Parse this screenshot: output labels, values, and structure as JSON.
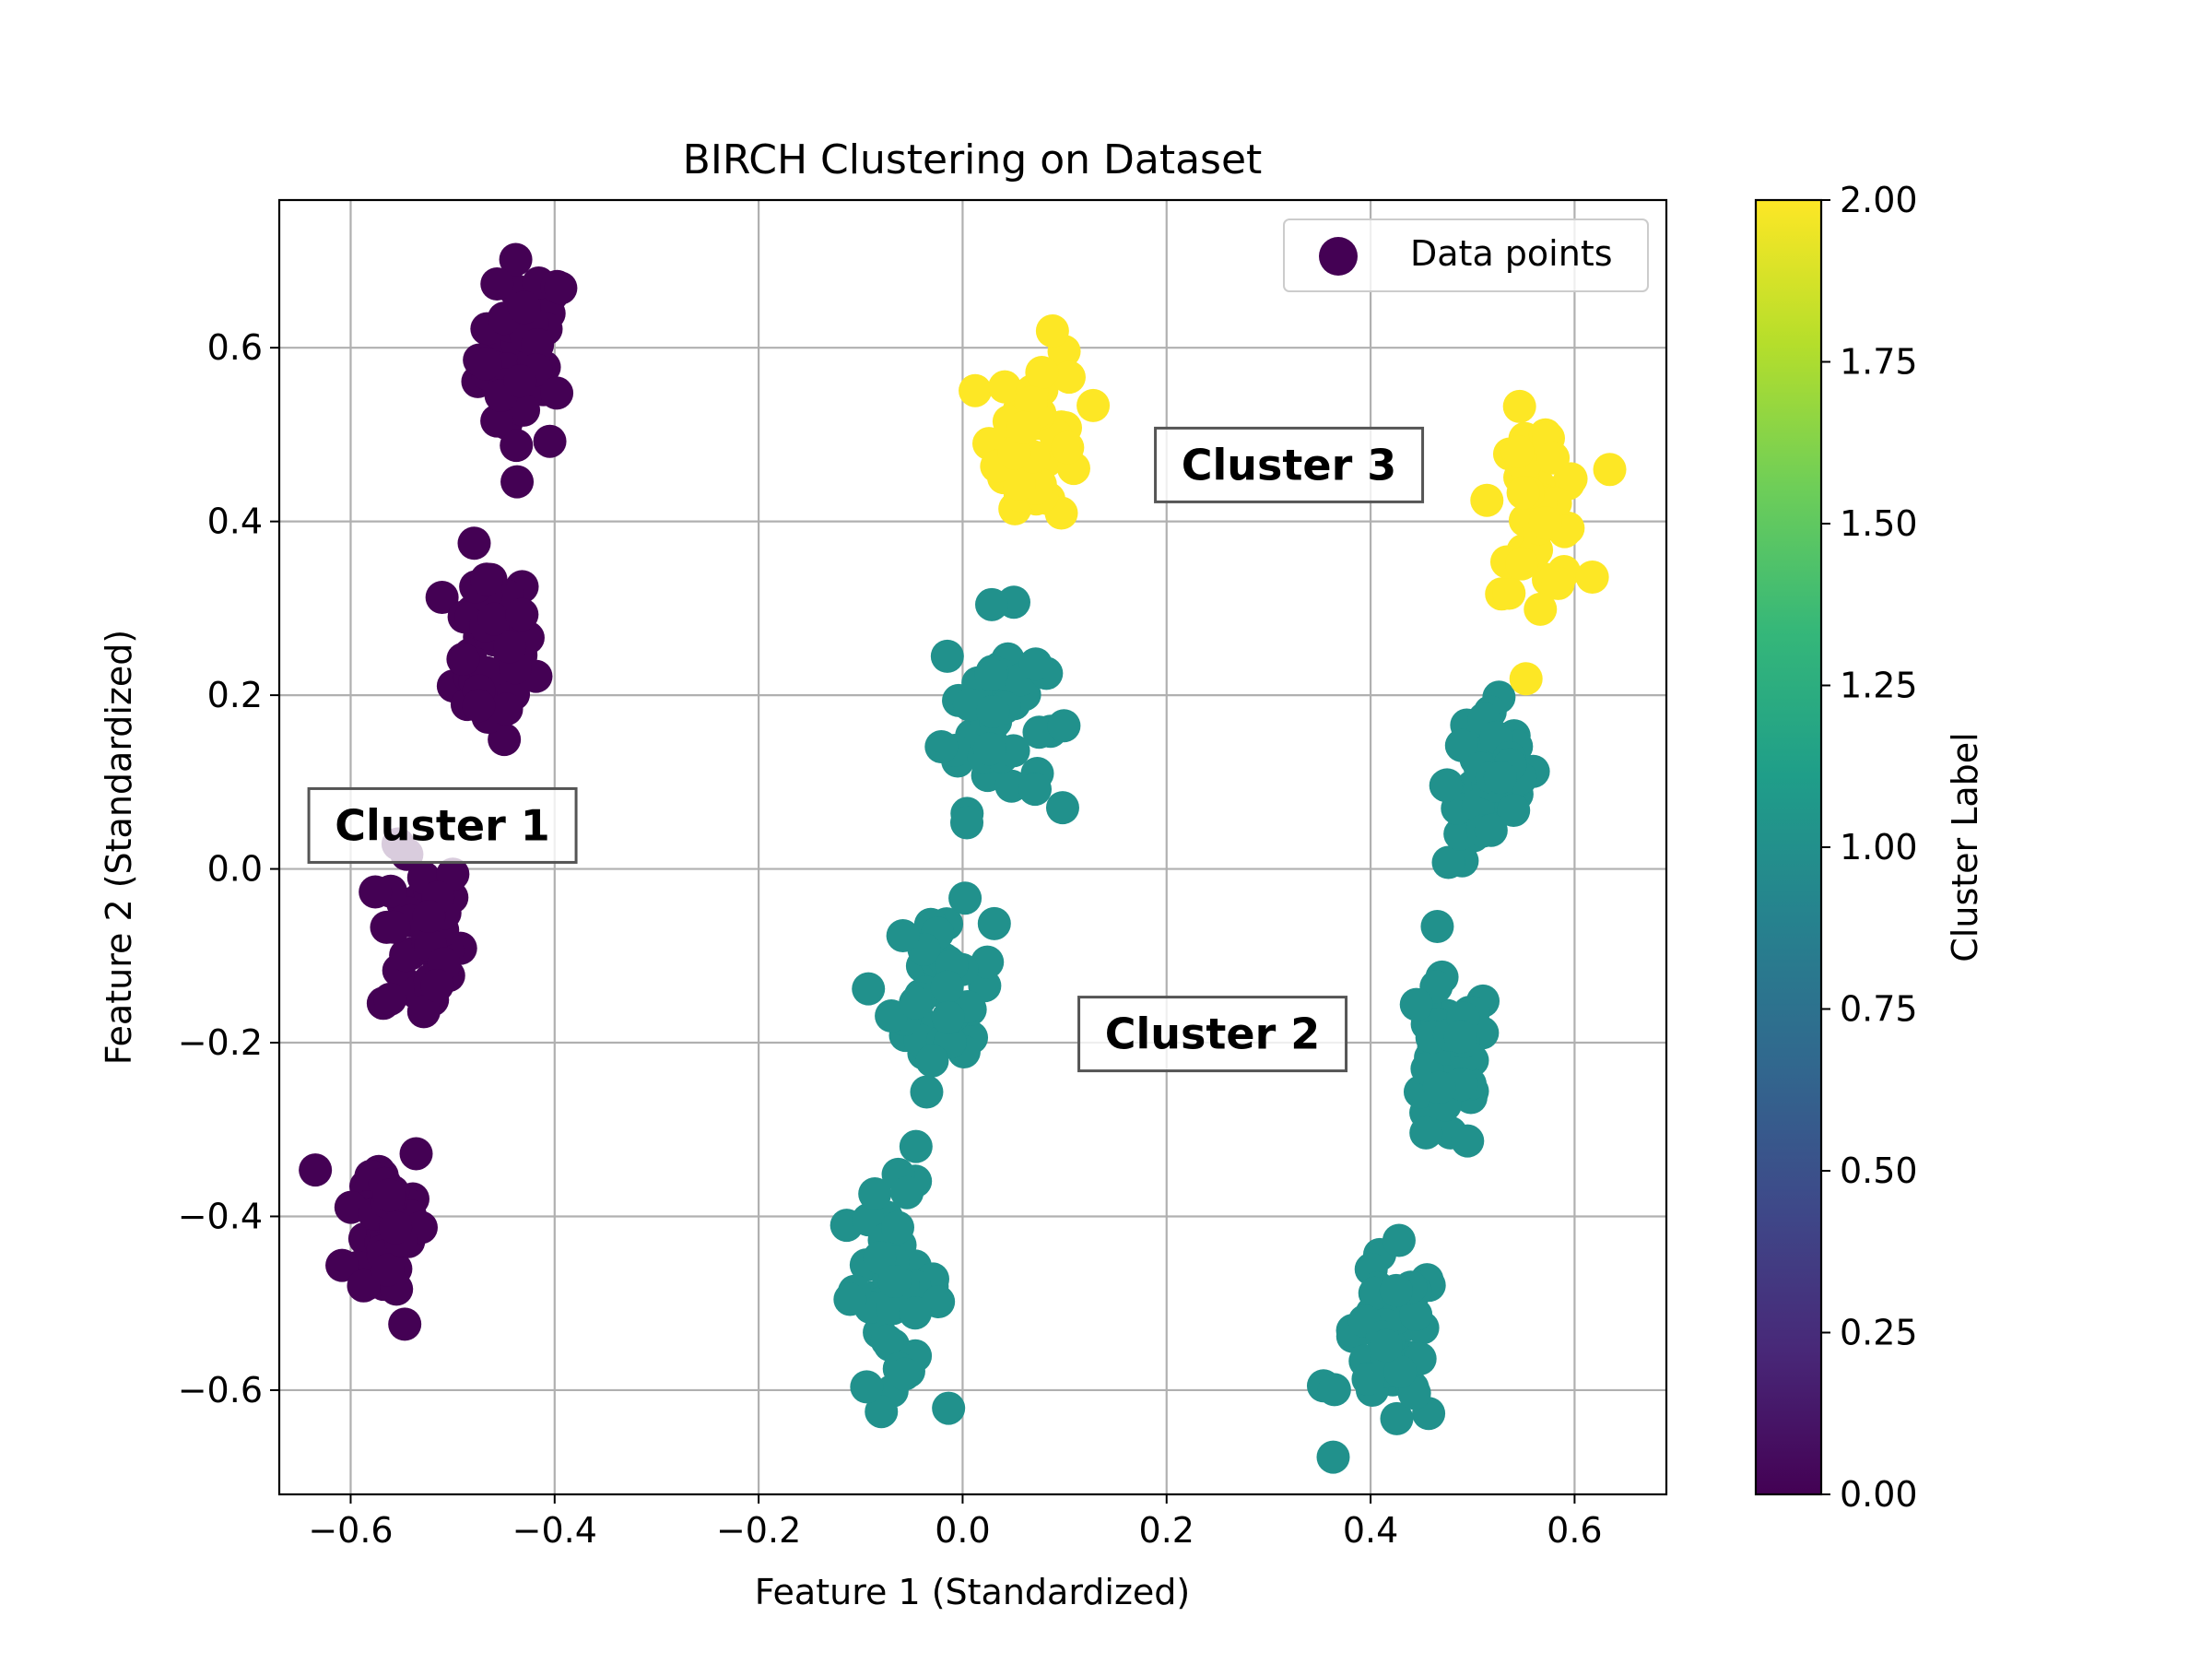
{
  "chart_data": {
    "type": "scatter",
    "title": "BIRCH Clustering on Dataset",
    "xlabel": "Feature 1 (Standardized)",
    "ylabel": "Feature 2 (Standardized)",
    "xlim": [
      -0.67,
      0.69
    ],
    "ylim": [
      -0.72,
      0.77
    ],
    "xticks": [
      -0.6,
      -0.4,
      -0.2,
      0.0,
      0.2,
      0.4,
      0.6
    ],
    "xtick_labels": [
      "−0.6",
      "−0.4",
      "−0.2",
      "0.0",
      "0.2",
      "0.4",
      "0.6"
    ],
    "yticks": [
      -0.6,
      -0.4,
      -0.2,
      0.0,
      0.2,
      0.4,
      0.6
    ],
    "ytick_labels": [
      "−0.6",
      "−0.4",
      "−0.2",
      "0.0",
      "0.2",
      "0.4",
      "0.6"
    ],
    "grid": true,
    "legend": {
      "position": "top-right",
      "label": "Data points"
    },
    "colorbar": {
      "label": "Cluster Label",
      "range": [
        0.0,
        2.0
      ],
      "ticks": [
        0.0,
        0.25,
        0.5,
        0.75,
        1.0,
        1.25,
        1.5,
        1.75,
        2.0
      ],
      "tick_labels": [
        "0.00",
        "0.25",
        "0.50",
        "0.75",
        "1.00",
        "1.25",
        "1.50",
        "1.75",
        "2.00"
      ],
      "colormap": [
        "#440154",
        "#482878",
        "#3e4989",
        "#31688e",
        "#26828e",
        "#1f9e89",
        "#35b779",
        "#6ece58",
        "#b5de2b",
        "#fde725"
      ]
    },
    "annotations": [
      {
        "text": "Cluster 1",
        "x": -0.51,
        "y": 0.05
      },
      {
        "text": "Cluster 2",
        "x": 0.245,
        "y": -0.19
      },
      {
        "text": "Cluster 3",
        "x": 0.32,
        "y": 0.465
      }
    ],
    "blobs": [
      {
        "label": 0,
        "color": "#440154",
        "cx": -0.43,
        "cy": 0.59,
        "sx": 0.022,
        "sy": 0.055,
        "n": 45
      },
      {
        "label": 0,
        "color": "#440154",
        "cx": -0.465,
        "cy": 0.25,
        "sx": 0.022,
        "sy": 0.05,
        "n": 45
      },
      {
        "label": 0,
        "color": "#440154",
        "cx": -0.53,
        "cy": -0.08,
        "sx": 0.02,
        "sy": 0.05,
        "n": 45
      },
      {
        "label": 0,
        "color": "#440154",
        "cx": -0.565,
        "cy": -0.41,
        "sx": 0.02,
        "sy": 0.055,
        "n": 45
      },
      {
        "label": 1,
        "color": "#21918c",
        "cx": 0.03,
        "cy": 0.18,
        "sx": 0.025,
        "sy": 0.055,
        "n": 45
      },
      {
        "label": 1,
        "color": "#21918c",
        "cx": -0.02,
        "cy": -0.15,
        "sx": 0.025,
        "sy": 0.05,
        "n": 45
      },
      {
        "label": 1,
        "color": "#21918c",
        "cx": -0.07,
        "cy": -0.48,
        "sx": 0.025,
        "sy": 0.055,
        "n": 45
      },
      {
        "label": 1,
        "color": "#21918c",
        "cx": 0.52,
        "cy": 0.1,
        "sx": 0.022,
        "sy": 0.05,
        "n": 45
      },
      {
        "label": 1,
        "color": "#21918c",
        "cx": 0.475,
        "cy": -0.23,
        "sx": 0.022,
        "sy": 0.05,
        "n": 45
      },
      {
        "label": 1,
        "color": "#21918c",
        "cx": 0.42,
        "cy": -0.55,
        "sx": 0.025,
        "sy": 0.05,
        "n": 45
      },
      {
        "label": 2,
        "color": "#fde725",
        "cx": 0.075,
        "cy": 0.5,
        "sx": 0.022,
        "sy": 0.05,
        "n": 45
      },
      {
        "label": 2,
        "color": "#fde725",
        "cx": 0.565,
        "cy": 0.42,
        "sx": 0.022,
        "sy": 0.05,
        "n": 45
      }
    ]
  }
}
